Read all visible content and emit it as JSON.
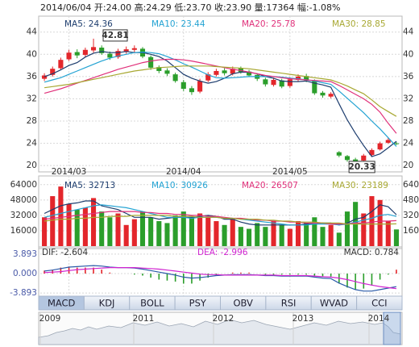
{
  "header": {
    "text": "2014/06/04 开:24.00 高:24.29 低:23.70 收:23.90 量:17364 幅:-1.08%"
  },
  "chart_data": [
    {
      "type": "candlestick",
      "categories": [
        null,
        null,
        null,
        "2014/03",
        null,
        null,
        null,
        null,
        null,
        null,
        null,
        null,
        null,
        null,
        null,
        null,
        null,
        "2014/04",
        null,
        null,
        null,
        null,
        null,
        null,
        null,
        null,
        null,
        null,
        null,
        null,
        "2014/05",
        null,
        null,
        null,
        null,
        null,
        null,
        null,
        null,
        null,
        null,
        null,
        null,
        null
      ],
      "open": [
        35.6,
        36.3,
        37.5,
        39.1,
        40.4,
        39.9,
        40.7,
        41.2,
        40.1,
        39.5,
        40.5,
        40.8,
        41.0,
        39.5,
        37.7,
        37.1,
        36.4,
        35.0,
        33.9,
        33.3,
        35.3,
        36.3,
        37.1,
        36.5,
        37.5,
        36.9,
        36.3,
        35.5,
        34.5,
        35.3,
        34.3,
        35.4,
        36.1,
        35.2,
        33.1,
        32.4,
        22.4,
        21.7,
        21.1,
        20.9,
        21.9,
        22.9,
        24.1,
        24.0
      ],
      "high": [
        36.6,
        37.8,
        39.4,
        40.8,
        40.9,
        41.2,
        42.81,
        41.6,
        40.5,
        41.0,
        41.4,
        41.6,
        41.3,
        39.8,
        38.0,
        37.5,
        36.7,
        35.4,
        34.3,
        35.6,
        36.8,
        37.4,
        37.5,
        37.8,
        37.8,
        37.2,
        36.6,
        35.8,
        35.8,
        35.6,
        35.9,
        36.4,
        36.5,
        35.5,
        33.4,
        33.2,
        22.6,
        21.9,
        21.4,
        22.1,
        23.1,
        24.3,
        25.0,
        24.29
      ],
      "low": [
        35.2,
        36.0,
        37.2,
        38.8,
        39.3,
        39.5,
        40.3,
        39.9,
        39.0,
        39.2,
        40.1,
        40.4,
        39.3,
        37.2,
        36.6,
        36.1,
        34.9,
        33.4,
        32.7,
        33.0,
        35.0,
        36.0,
        36.2,
        36.2,
        36.5,
        35.9,
        35.2,
        34.2,
        34.2,
        33.9,
        34.0,
        35.1,
        35.0,
        32.7,
        32.2,
        32.1,
        21.5,
        20.7,
        20.33,
        20.6,
        21.6,
        22.7,
        23.9,
        23.7
      ],
      "close": [
        36.2,
        37.4,
        39.0,
        40.3,
        39.8,
        40.8,
        41.3,
        40.2,
        39.4,
        40.6,
        40.9,
        41.1,
        39.6,
        37.6,
        37.0,
        36.5,
        35.2,
        33.8,
        33.2,
        35.2,
        36.4,
        37.0,
        36.6,
        37.4,
        36.8,
        36.2,
        35.6,
        34.6,
        35.4,
        34.2,
        35.5,
        36.0,
        35.3,
        33.0,
        32.6,
        32.9,
        21.8,
        21.0,
        20.8,
        21.8,
        22.8,
        24.0,
        24.6,
        23.9
      ],
      "up_color": "#e3262b",
      "down_color": "#2b9e2b",
      "high_label": "42.81",
      "low_label": "20.33",
      "series": [
        {
          "name": "MA5: 24.36",
          "color": "#1d3d6e",
          "values": [
            36.0,
            36.5,
            37.2,
            38.0,
            38.5,
            39.5,
            40.2,
            40.5,
            40.3,
            40.3,
            40.5,
            40.3,
            40.3,
            40.0,
            39.6,
            38.8,
            37.6,
            36.4,
            35.7,
            35.2,
            34.8,
            35.1,
            35.7,
            36.5,
            36.8,
            36.8,
            36.5,
            36.0,
            35.7,
            35.2,
            35.1,
            35.1,
            35.2,
            34.8,
            34.5,
            34.1,
            31.1,
            28.2,
            25.8,
            23.6,
            21.6,
            22.1,
            23.2,
            24.36
          ]
        },
        {
          "name": "MA10: 23.44",
          "color": "#23a3d3",
          "values": [
            35.0,
            35.4,
            35.8,
            36.4,
            37.0,
            37.6,
            38.2,
            38.8,
            39.3,
            39.7,
            40.0,
            40.3,
            40.4,
            40.3,
            40.1,
            39.6,
            39.0,
            38.3,
            37.7,
            37.0,
            36.3,
            35.8,
            35.7,
            35.8,
            35.9,
            36.0,
            36.0,
            36.0,
            36.0,
            35.9,
            35.7,
            35.6,
            35.4,
            35.2,
            34.9,
            34.6,
            33.4,
            32.1,
            30.8,
            29.5,
            28.0,
            26.6,
            25.0,
            23.44
          ]
        },
        {
          "name": "MA20: 25.78",
          "color": "#e0307a",
          "values": [
            33.0,
            33.4,
            33.8,
            34.3,
            34.8,
            35.3,
            35.8,
            36.3,
            36.8,
            37.3,
            37.7,
            38.1,
            38.5,
            38.8,
            39.0,
            39.1,
            39.1,
            39.0,
            38.8,
            38.5,
            38.2,
            37.9,
            37.6,
            37.3,
            37.1,
            36.8,
            36.5,
            36.2,
            36.0,
            35.8,
            35.6,
            35.5,
            35.4,
            35.3,
            35.2,
            35.1,
            34.4,
            33.6,
            32.8,
            32.0,
            31.0,
            29.6,
            27.6,
            25.78
          ]
        },
        {
          "name": "MA30: 28.85",
          "color": "#a8a832",
          "values": [
            34.0,
            34.2,
            34.4,
            34.6,
            34.9,
            35.2,
            35.5,
            35.8,
            36.1,
            36.4,
            36.7,
            37.0,
            37.2,
            37.4,
            37.6,
            37.7,
            37.8,
            37.9,
            37.9,
            37.9,
            37.9,
            37.8,
            37.7,
            37.6,
            37.5,
            37.4,
            37.2,
            37.0,
            36.8,
            36.6,
            36.4,
            36.2,
            36.0,
            35.8,
            35.6,
            35.4,
            34.9,
            34.3,
            33.6,
            32.9,
            31.8,
            30.6,
            29.7,
            28.85
          ]
        }
      ],
      "ylim": [
        19.3,
        45.7
      ],
      "yticks": [
        20,
        24,
        28,
        32,
        36,
        40,
        44
      ],
      "grid": true
    },
    {
      "type": "bar",
      "values": [
        30000,
        52000,
        62000,
        44000,
        38000,
        40000,
        50000,
        36000,
        30000,
        34000,
        22000,
        28000,
        36000,
        30000,
        26000,
        24000,
        32000,
        36000,
        30000,
        34000,
        30000,
        26000,
        22000,
        28000,
        20000,
        18000,
        24000,
        20000,
        26000,
        22000,
        18000,
        26000,
        24000,
        30000,
        20000,
        22000,
        14000,
        36000,
        46000,
        34000,
        52000,
        48000,
        26000,
        17364
      ],
      "series": [
        {
          "name": "MA5: 32713",
          "color": "#1d3d6e",
          "values": [
            34000,
            38000,
            42000,
            44000,
            45000,
            47000,
            47000,
            42000,
            40000,
            38000,
            34000,
            30000,
            30000,
            30000,
            28000,
            29000,
            30000,
            30000,
            30000,
            31000,
            32000,
            31000,
            28000,
            28000,
            25000,
            23000,
            22000,
            22000,
            22000,
            22000,
            22000,
            22000,
            23000,
            24000,
            24000,
            24000,
            22000,
            24000,
            28000,
            30000,
            36000,
            43000,
            41000,
            32713
          ]
        },
        {
          "name": "MA10: 30926",
          "color": "#23a3d3",
          "values": [
            30000,
            32000,
            34000,
            36000,
            38000,
            40000,
            42000,
            43000,
            42000,
            41000,
            40000,
            38000,
            36000,
            34000,
            32000,
            30000,
            30000,
            30000,
            29000,
            30000,
            30000,
            30000,
            29000,
            29000,
            28000,
            27000,
            26000,
            25000,
            24000,
            23000,
            22000,
            22000,
            22000,
            23000,
            23000,
            23000,
            22000,
            23000,
            25000,
            27000,
            29000,
            32000,
            33000,
            30926
          ]
        },
        {
          "name": "MA20: 26507",
          "color": "#e0307a",
          "values": [
            28000,
            29000,
            30000,
            31000,
            32000,
            33000,
            34000,
            35000,
            36000,
            36000,
            36000,
            36000,
            35000,
            35000,
            34000,
            34000,
            33000,
            33000,
            32000,
            32000,
            31000,
            31000,
            30000,
            29000,
            29000,
            28000,
            27000,
            27000,
            26000,
            26000,
            25000,
            25000,
            24000,
            24000,
            24000,
            23000,
            23000,
            23000,
            24000,
            24000,
            25000,
            26000,
            26000,
            26507
          ]
        },
        {
          "name": "MA30: 23189",
          "color": "#a8a832",
          "values": [
            26000,
            27000,
            28000,
            28000,
            29000,
            29000,
            30000,
            30000,
            31000,
            31000,
            31000,
            32000,
            32000,
            32000,
            32000,
            32000,
            31000,
            31000,
            31000,
            30000,
            30000,
            30000,
            29000,
            29000,
            28000,
            28000,
            28000,
            27000,
            27000,
            26000,
            26000,
            25000,
            25000,
            25000,
            24000,
            24000,
            24000,
            23000,
            23000,
            23000,
            23000,
            23000,
            23000,
            23189
          ]
        }
      ],
      "ylim": [
        0,
        68000
      ],
      "yticks": [
        16000,
        32000,
        48000,
        64000
      ],
      "grid": true
    },
    {
      "type": "macd",
      "series": [
        {
          "name": "DIF: -2.604",
          "color": "#2a5aa8",
          "values": [
            0.5,
            0.7,
            1.0,
            1.3,
            1.4,
            1.5,
            1.6,
            1.5,
            1.3,
            1.2,
            1.2,
            1.1,
            0.9,
            0.6,
            0.3,
            0.0,
            -0.3,
            -0.7,
            -0.9,
            -0.8,
            -0.6,
            -0.4,
            -0.3,
            -0.2,
            -0.2,
            -0.2,
            -0.3,
            -0.4,
            -0.4,
            -0.5,
            -0.5,
            -0.5,
            -0.5,
            -0.7,
            -0.9,
            -1.0,
            -1.9,
            -2.6,
            -3.2,
            -3.5,
            -3.5,
            -3.2,
            -2.9,
            -2.604
          ]
        },
        {
          "name": "DEA: -2.996",
          "color": "#d024d0",
          "values": [
            0.2,
            0.3,
            0.4,
            0.6,
            0.8,
            0.9,
            1.0,
            1.1,
            1.2,
            1.2,
            1.2,
            1.2,
            1.1,
            1.0,
            0.9,
            0.7,
            0.5,
            0.3,
            0.1,
            -0.1,
            -0.2,
            -0.2,
            -0.3,
            -0.3,
            -0.3,
            -0.3,
            -0.3,
            -0.3,
            -0.3,
            -0.4,
            -0.4,
            -0.4,
            -0.4,
            -0.5,
            -0.6,
            -0.7,
            -0.9,
            -1.2,
            -1.6,
            -2.0,
            -2.3,
            -2.6,
            -2.8,
            -2.996
          ]
        }
      ],
      "histogram": {
        "name": "MACD: 0.784",
        "up_color": "#e3262b",
        "down_color": "#2b9e2b",
        "values": [
          0.6,
          0.8,
          1.2,
          1.4,
          1.2,
          1.2,
          1.2,
          0.8,
          0.2,
          0,
          0,
          -0.2,
          -0.4,
          -0.8,
          -1.2,
          -1.4,
          -1.6,
          -2.0,
          -2.0,
          -1.4,
          -0.8,
          -0.4,
          0,
          0.2,
          0.2,
          0.2,
          0,
          -0.2,
          -0.2,
          -0.2,
          -0.2,
          -0.2,
          -0.2,
          -0.4,
          -0.6,
          -0.6,
          -2.0,
          -2.8,
          -3.2,
          -3.0,
          -2.4,
          -1.2,
          -0.2,
          0.784
        ]
      },
      "ylim": [
        -5.0,
        4.85
      ],
      "yticks": [
        3.893,
        {
          "value": 0,
          "label": "0.000"
        },
        -3.893
      ],
      "grid": true
    }
  ],
  "tabs": [
    "MACD",
    "KDJ",
    "BOLL",
    "PSY",
    "OBV",
    "RSI",
    "WVAD",
    "CCI"
  ],
  "navigator": {
    "years": [
      "2009",
      "2011",
      "2012",
      "2013",
      "2014"
    ]
  }
}
